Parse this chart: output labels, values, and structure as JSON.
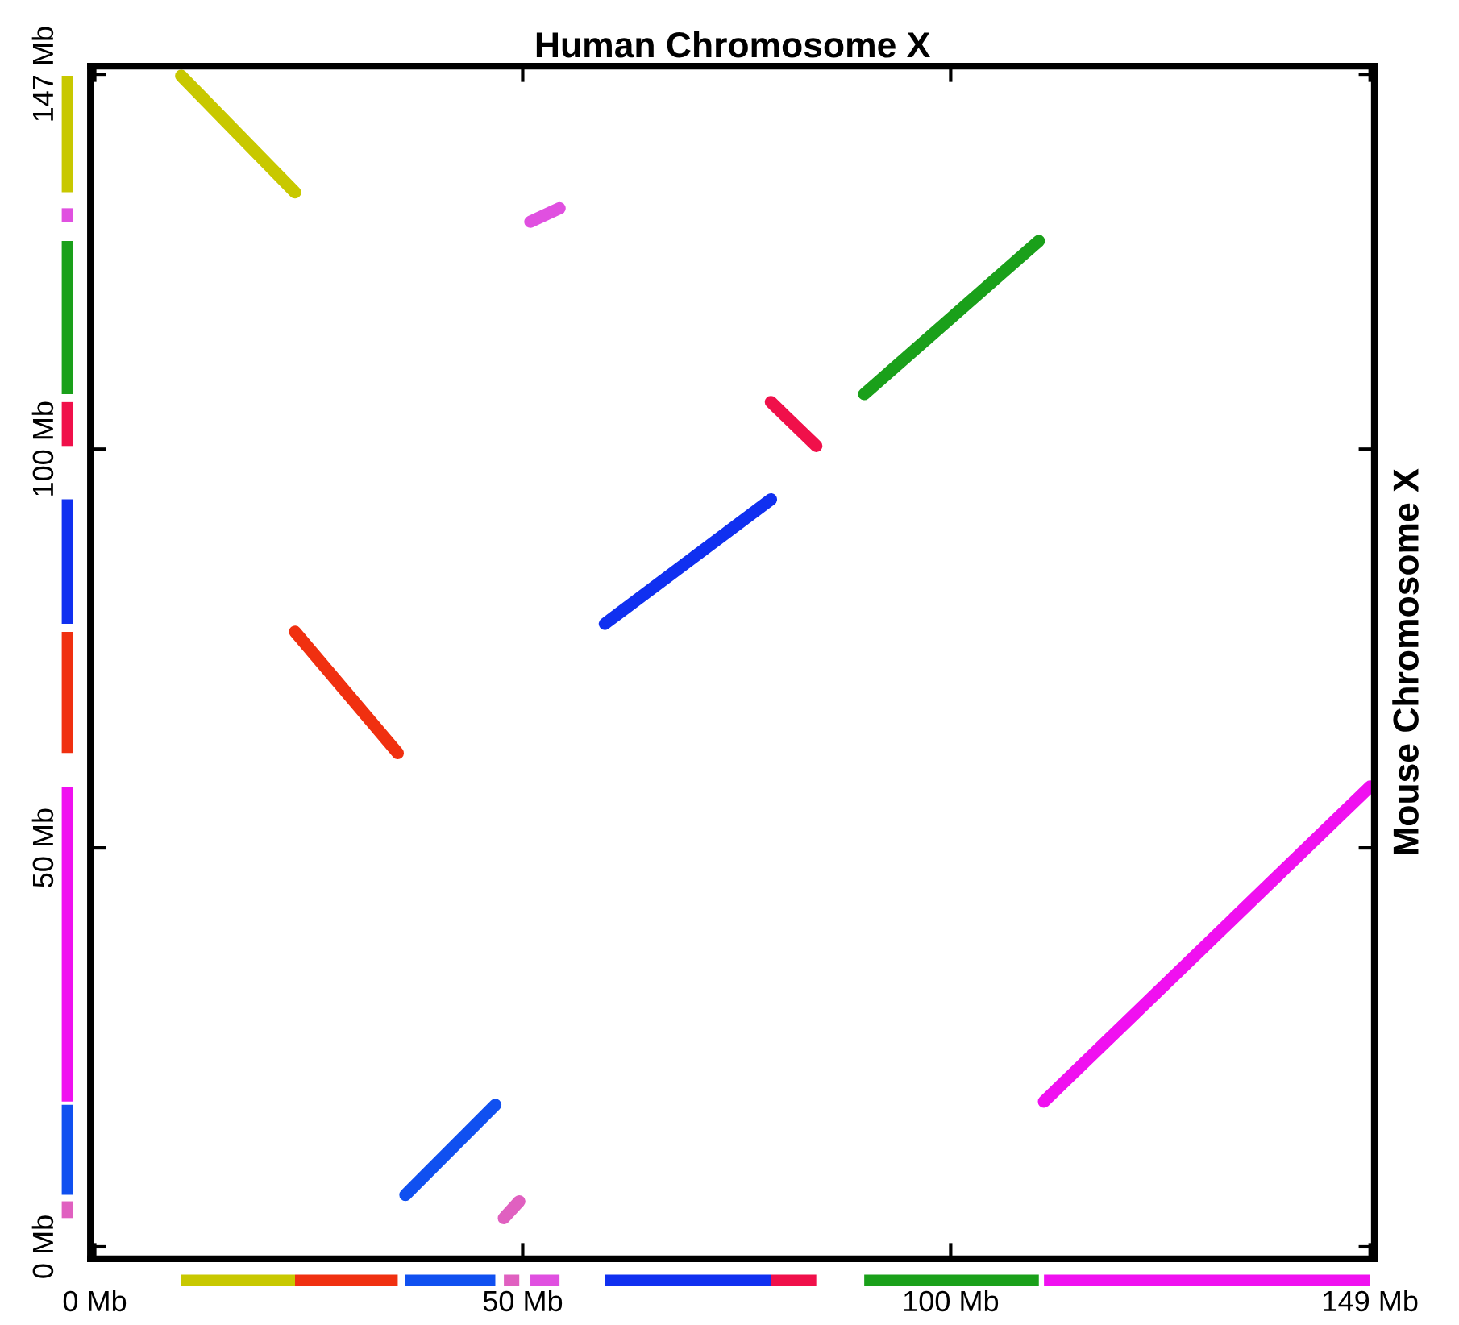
{
  "chart_data": {
    "type": "line",
    "title": "Human Chromosome X",
    "ylabel": "Mouse Chromosome X",
    "xlim": [
      -0.5,
      149.5
    ],
    "ylim": [
      -1.5,
      148
    ],
    "xticks": [
      {
        "value": 0,
        "label": "0 Mb"
      },
      {
        "value": 50,
        "label": "50 Mb"
      },
      {
        "value": 100,
        "label": "100 Mb"
      },
      {
        "value": 149,
        "label": "149 Mb"
      }
    ],
    "yticks": [
      {
        "value": 0,
        "label": "0 Mb"
      },
      {
        "value": 50,
        "label": "50 Mb"
      },
      {
        "value": 100,
        "label": "100 Mb"
      },
      {
        "value": 147,
        "label": "147 Mb"
      }
    ],
    "grid": false,
    "legend": false,
    "marker": "none",
    "line_style": "solid",
    "series": [
      {
        "color": "#c8c800",
        "x": [
          10.1,
          23.4
        ],
        "values": [
          146.8,
          132.2
        ]
      },
      {
        "color": "#e050e0",
        "x": [
          50.9,
          54.3
        ],
        "values": [
          128.5,
          130.2
        ]
      },
      {
        "color": "#1aa01a",
        "x": [
          89.9,
          110.3
        ],
        "values": [
          106.9,
          126.1
        ]
      },
      {
        "color": "#f0104a",
        "x": [
          79.0,
          84.3
        ],
        "values": [
          105.9,
          100.4
        ]
      },
      {
        "color": "#1030f0",
        "x": [
          59.6,
          79.0
        ],
        "values": [
          78.1,
          93.7
        ]
      },
      {
        "color": "#f03010",
        "x": [
          23.4,
          35.4
        ],
        "values": [
          77.1,
          61.9
        ]
      },
      {
        "color": "#f010f0",
        "x": [
          110.9,
          149
        ],
        "values": [
          18.2,
          57.7
        ]
      },
      {
        "color": "#1050f0",
        "x": [
          36.3,
          46.8
        ],
        "values": [
          6.5,
          17.8
        ]
      },
      {
        "color": "#e060c0",
        "x": [
          47.8,
          49.6
        ],
        "values": [
          3.6,
          5.7
        ]
      }
    ]
  }
}
